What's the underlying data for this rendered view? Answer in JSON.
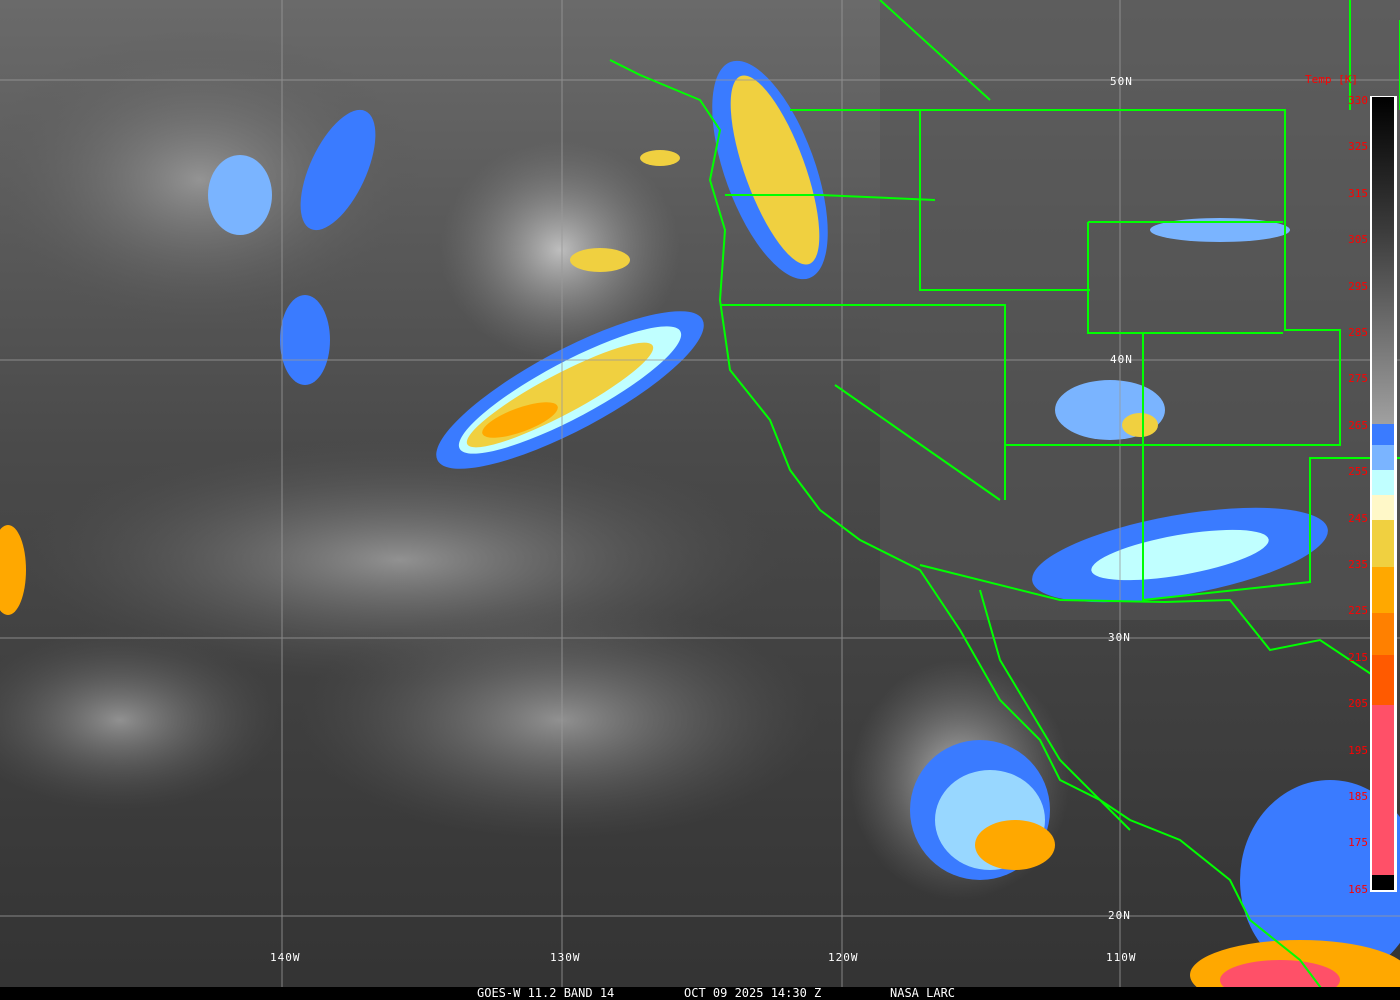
{
  "caption": {
    "satellite": "GOES-W 11.2 BAND 14",
    "datetime": "OCT 09 2025 14:30 Z",
    "source": "NASA LARC"
  },
  "latitude_labels": [
    "50N",
    "40N",
    "30N",
    "20N"
  ],
  "longitude_labels": [
    "140W",
    "130W",
    "120W",
    "110W"
  ],
  "colorbar": {
    "title": "Temp [K]",
    "ticks": [
      "330",
      "325",
      "315",
      "305",
      "295",
      "285",
      "275",
      "265",
      "255",
      "245",
      "235",
      "225",
      "215",
      "205",
      "195",
      "185",
      "175",
      "165"
    ],
    "colors": [
      "#000000",
      "#3a3a3a",
      "#a0a0a0",
      "#3a7bff",
      "#7ab4ff",
      "#c0ffff",
      "#fff8c8",
      "#f0d040",
      "#ffa800",
      "#ff8000",
      "#ff5a00",
      "#ff5068",
      "#000000"
    ]
  },
  "border_color": "#00ff00"
}
